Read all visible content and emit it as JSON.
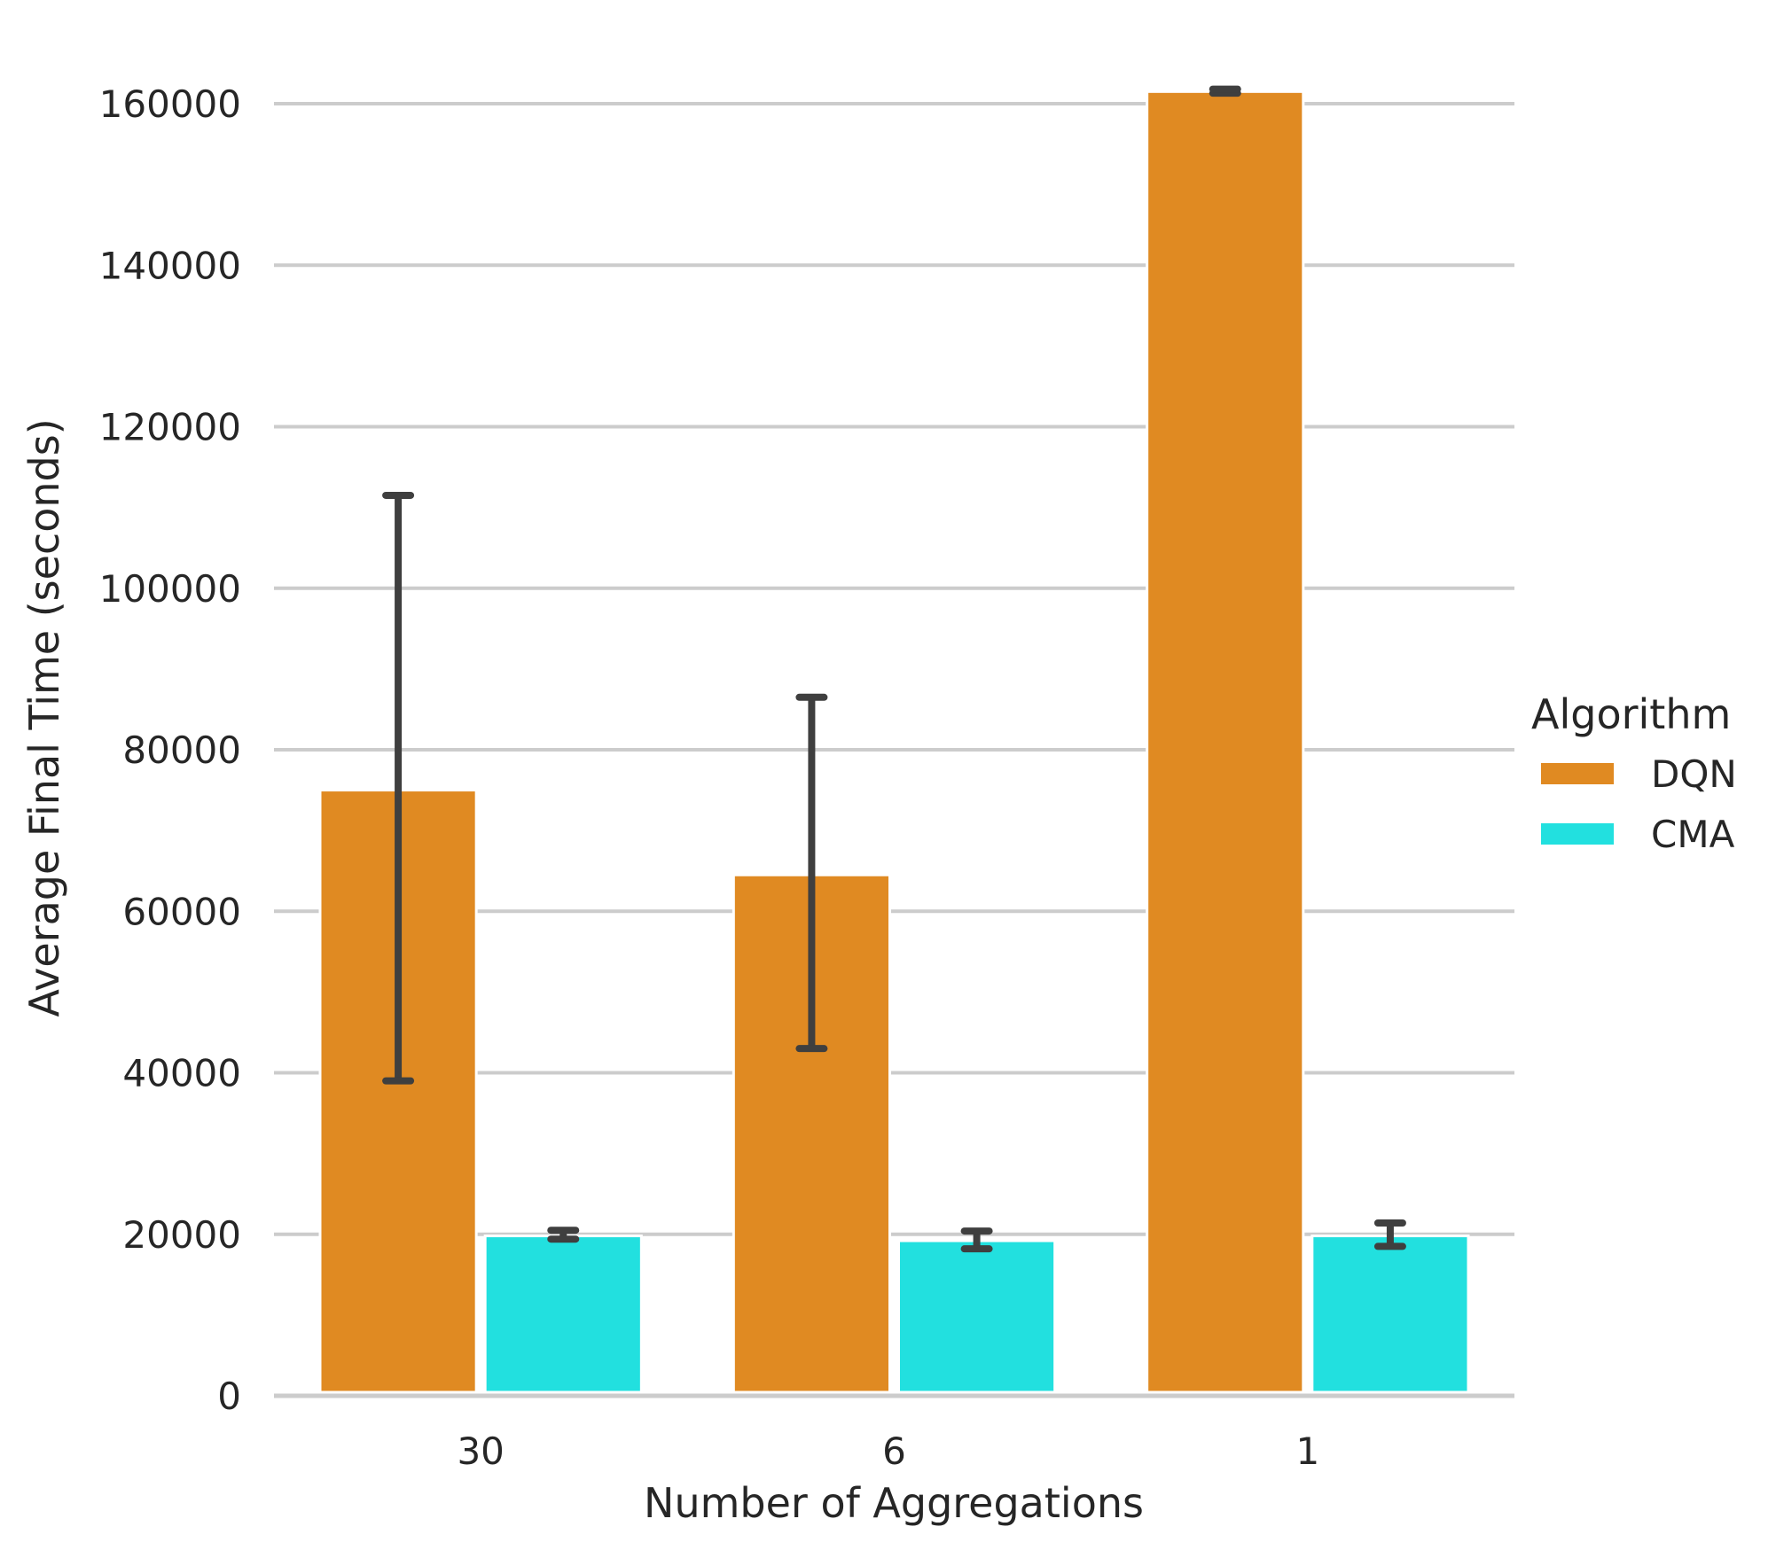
{
  "chart_data": {
    "type": "bar",
    "title": "",
    "xlabel": "Number of Aggregations",
    "ylabel": "Average Final Time (seconds)",
    "categories": [
      "30",
      "6",
      "1"
    ],
    "ylim": [
      0,
      165000
    ],
    "yticks": [
      0,
      20000,
      40000,
      60000,
      80000,
      100000,
      120000,
      140000,
      160000
    ],
    "grid": "horizontal",
    "legend": {
      "title": "Algorithm",
      "placement": "right"
    },
    "series": [
      {
        "name": "DQN",
        "color": "#e08a22",
        "values": [
          75000,
          64500,
          161500
        ],
        "err_low": [
          39000,
          43000,
          161300
        ],
        "err_high": [
          111500,
          86500,
          161800
        ]
      },
      {
        "name": "CMA",
        "color": "#22e0df",
        "values": [
          19800,
          19200,
          19800
        ],
        "err_low": [
          19400,
          18200,
          18500
        ],
        "err_high": [
          20500,
          20400,
          21400
        ]
      }
    ],
    "error_bar_color": "#3f3f3f",
    "grid_color": "#cccccc"
  }
}
